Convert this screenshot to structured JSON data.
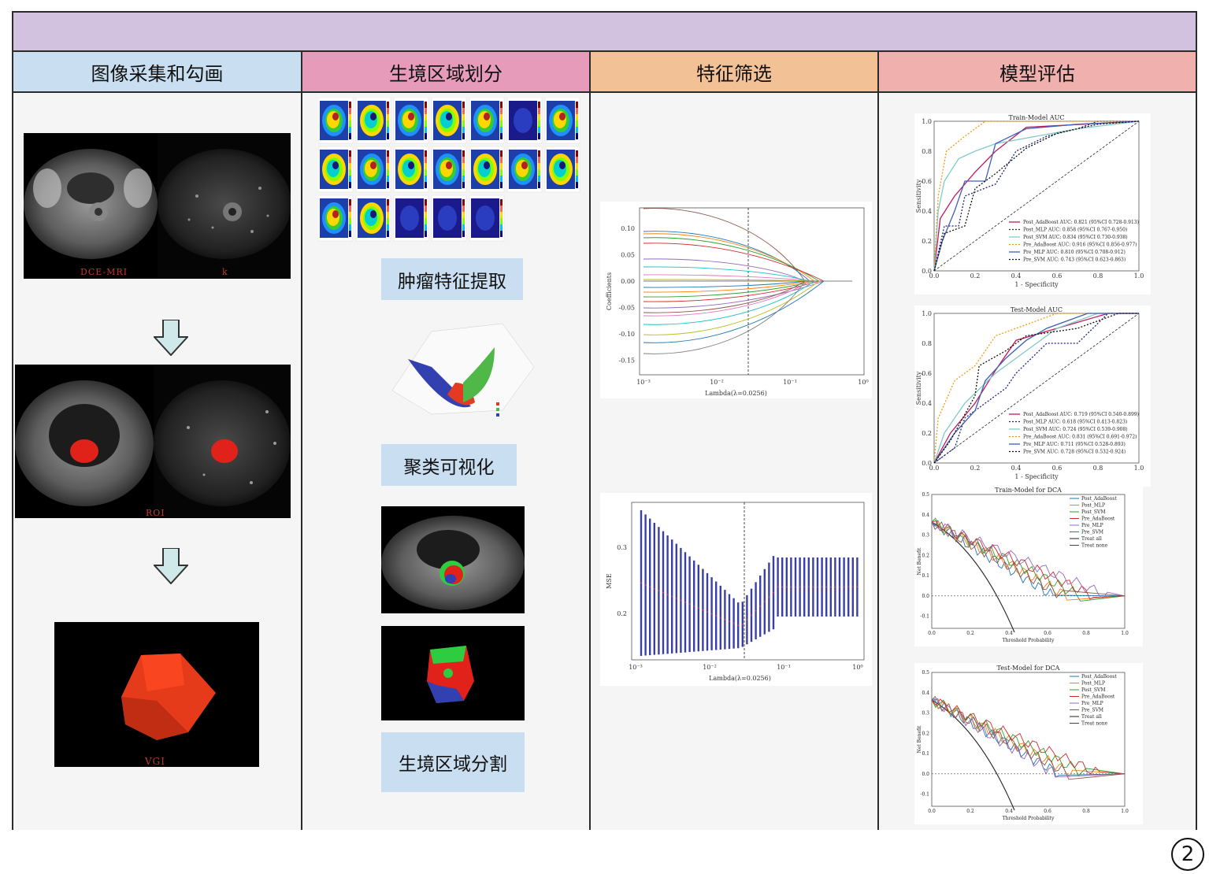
{
  "sections": [
    {
      "title": "图像采集和勾画",
      "color": "#c9dff1"
    },
    {
      "title": "生境区域划分",
      "color": "#e79bbb"
    },
    {
      "title": "特征筛选",
      "color": "#f2c196"
    },
    {
      "title": "模型评估",
      "color": "#f0b1ae"
    }
  ],
  "col1": {
    "img1_left_caption": "DCE-MRI",
    "img1_right_caption": "k",
    "img2_caption": "ROI",
    "img3_caption": "VGI"
  },
  "col2": {
    "step1": "肿瘤特征提取",
    "step2": "聚类可视化",
    "step3": "生境区域分割"
  },
  "col3": {
    "lasso_xlabel": "Lambda(λ=0.0256)",
    "lasso_ylabel": "Coefficients",
    "lasso_yticks": [
      "0.10",
      "0.05",
      "0.00",
      "-0.05",
      "-0.10",
      "-0.15"
    ],
    "lasso_xticks": [
      "10⁻³",
      "10⁻²",
      "10⁻¹",
      "10⁰"
    ],
    "mse_xlabel": "Lambda(λ=0.0256)",
    "mse_ylabel": "MSE",
    "mse_yticks": [
      "0.3",
      "0.2"
    ],
    "mse_xticks": [
      "10⁻³",
      "10⁻²",
      "10⁻¹",
      "10⁰"
    ]
  },
  "col4": {
    "train_auc": {
      "title": "Train-Model AUC",
      "xlabel": "1 - Specificity",
      "ylabel": "Sensitivity",
      "legend": [
        {
          "text": "Post_AdaBoost AUC: 0.821 (95%CI 0.728-0.913)",
          "color": "#c2185b",
          "dash": ""
        },
        {
          "text": "Post_MLP AUC: 0.858 (95%CI 0.767-0.950)",
          "color": "#1a237e",
          "dash": "2,2"
        },
        {
          "text": "Post_SVM AUC: 0.834 (95%CI 0.730-0.938)",
          "color": "#80cbc4",
          "dash": ""
        },
        {
          "text": "Pre_AdaBoost AUC: 0.916 (95%CI 0.856-0.977)",
          "color": "#f39c12",
          "dash": "2,2"
        },
        {
          "text": "Pre_MLP AUC: 0.810 (95%CI 0.708-0.912)",
          "color": "#3f5fb5",
          "dash": ""
        },
        {
          "text": "Pre_SVM AUC: 0.743 (95%CI 0.623-0.863)",
          "color": "#111111",
          "dash": "2,2"
        }
      ]
    },
    "test_auc": {
      "title": "Test-Model AUC",
      "xlabel": "1 - Specificity",
      "ylabel": "Sensitivity",
      "legend": [
        {
          "text": "Post_AdaBoost AUC: 0.719 (95%CI 0.540-0.899)",
          "color": "#c2185b",
          "dash": ""
        },
        {
          "text": "Post_MLP AUC: 0.618 (95%CI 0.413-0.823)",
          "color": "#1a237e",
          "dash": "2,2"
        },
        {
          "text": "Post_SVM AUC: 0.724 (95%CI 0.539-0.908)",
          "color": "#80cbc4",
          "dash": ""
        },
        {
          "text": "Pre_AdaBoost AUC: 0.831 (95%CI 0.691-0.972)",
          "color": "#f39c12",
          "dash": "2,2"
        },
        {
          "text": "Pre_MLP AUC: 0.711 (95%CI 0.528-0.893)",
          "color": "#3f5fb5",
          "dash": ""
        },
        {
          "text": "Pre_SVM AUC: 0.728 (95%CI 0.532-0.924)",
          "color": "#111111",
          "dash": "2,2"
        }
      ]
    },
    "train_dca": {
      "title": "Train-Model for DCA",
      "xlabel": "Threshold Probability",
      "ylabel": "Net Benefit",
      "legend": [
        "Post_AdaBoost",
        "Post_MLP",
        "Post_SVM",
        "Pre_AdaBoost",
        "Pre_MLP",
        "Pre_SVM",
        "Treat all",
        "Treat none"
      ]
    },
    "test_dca": {
      "title": "Test-Model for DCA",
      "xlabel": "Threshold Probability",
      "ylabel": "Net Benefit",
      "legend": [
        "Post_AdaBoost",
        "Post_MLP",
        "Post_SVM",
        "Pre_AdaBoost",
        "Pre_MLP",
        "Pre_SVM",
        "Treat all",
        "Treat none"
      ]
    }
  },
  "figure_number": "2"
}
